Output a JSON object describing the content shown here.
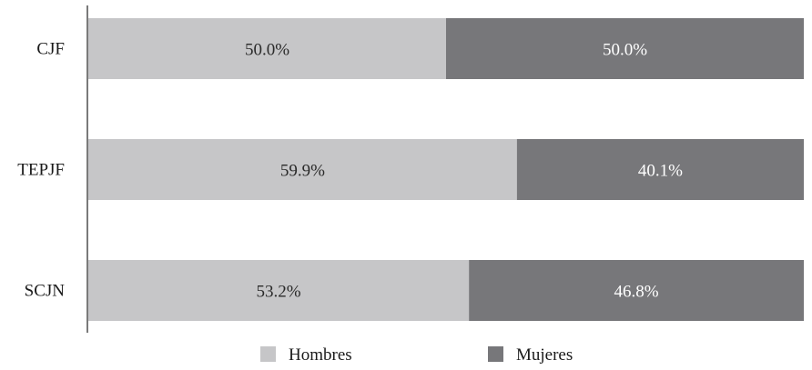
{
  "chart_data": {
    "type": "bar",
    "orientation": "horizontal",
    "stacked": true,
    "percent_scale": true,
    "categories": [
      "CJF",
      "TEPJF",
      "SCJN"
    ],
    "series": [
      {
        "name": "Hombres",
        "values": [
          50.0,
          59.9,
          53.2
        ],
        "color": "#c6c6c8",
        "label_color": "#2a2a2a"
      },
      {
        "name": "Mujeres",
        "values": [
          50.0,
          40.1,
          46.8
        ],
        "color": "#77777a",
        "label_color": "#ffffff"
      }
    ],
    "data_labels": [
      [
        "50.0%",
        "59.9%",
        "53.2%"
      ],
      [
        "50.0%",
        "40.1%",
        "46.8%"
      ]
    ],
    "title": "",
    "xlabel": "",
    "ylabel": "",
    "grid": false,
    "legend_position": "bottom"
  }
}
